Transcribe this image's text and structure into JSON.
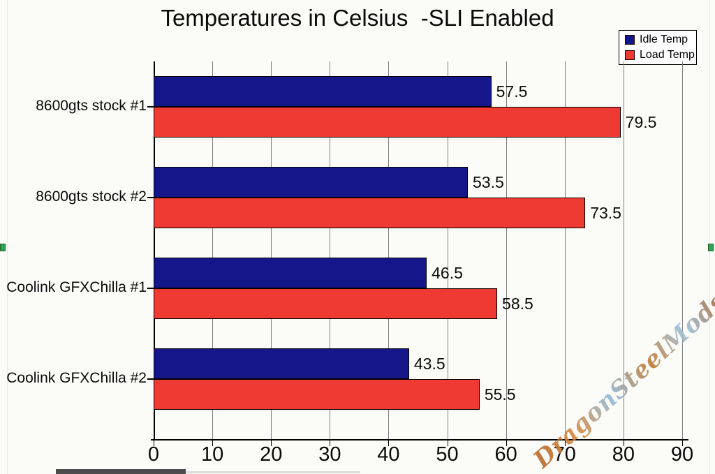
{
  "chart_data": {
    "type": "bar",
    "orientation": "horizontal",
    "title": "Temperatures in Celsius  -SLI Enabled",
    "categories": [
      "8600gts stock #1",
      "8600gts stock #2",
      "Coolink GFXChilla #1",
      "Coolink GFXChilla #2"
    ],
    "series": [
      {
        "name": "Idle Temp",
        "color": "#16168b",
        "values": [
          57.5,
          53.5,
          46.5,
          43.5
        ]
      },
      {
        "name": "Load Temp",
        "color": "#ee3a32",
        "values": [
          79.5,
          73.5,
          58.5,
          55.5
        ]
      }
    ],
    "xlim": [
      0,
      90
    ],
    "x_ticks": [
      0,
      10,
      20,
      30,
      40,
      50,
      60,
      70,
      80,
      90
    ],
    "grid": "vertical",
    "legend_position": "top-right",
    "value_labels_shown": true
  },
  "watermark": {
    "text": "DragonSteelMods",
    "colors": [
      "#c0762e",
      "#89b7d9"
    ]
  },
  "page": {
    "background": "#fbfbf8",
    "edge_line_color": "#eaeae7",
    "handle_color": "#35a050",
    "handle_border_color": "#1d6b32",
    "bottom_bar_color": "#4d4d4d",
    "bottom_bar_faint_color": "#dcdcd8"
  }
}
